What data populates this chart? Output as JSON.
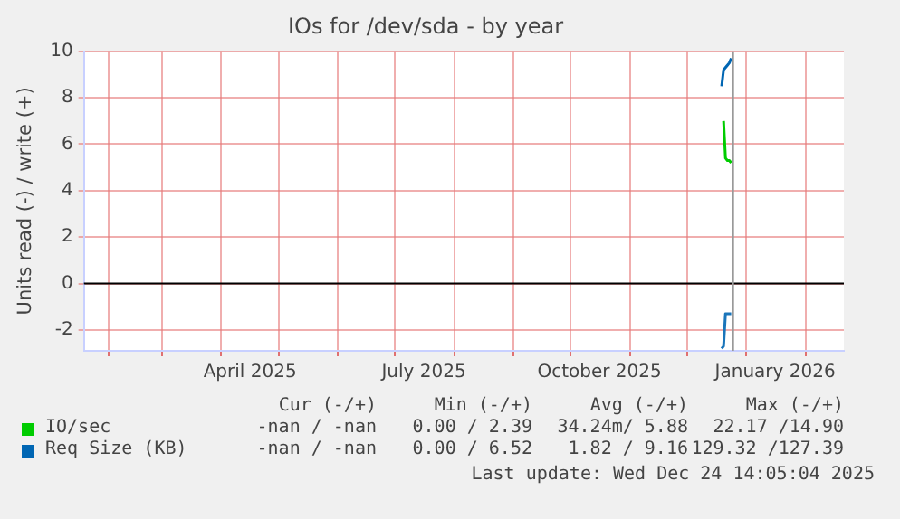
{
  "chart_data": {
    "type": "line",
    "title": "IOs for /dev/sda - by year",
    "ylabel": "Units read (-) / write (+)",
    "xlim": [
      "2025-01-19",
      "2026-02-21"
    ],
    "xticks": [
      {
        "value": "2025-02-01",
        "label": null
      },
      {
        "value": "2025-03-01",
        "label": null
      },
      {
        "value": "2025-04-01",
        "label": null
      },
      {
        "value": "2025-04-16",
        "label": "April 2025"
      },
      {
        "value": "2025-05-01",
        "label": null
      },
      {
        "value": "2025-06-01",
        "label": null
      },
      {
        "value": "2025-07-01",
        "label": null
      },
      {
        "value": "2025-07-16",
        "label": "July 2025"
      },
      {
        "value": "2025-08-01",
        "label": null
      },
      {
        "value": "2025-09-01",
        "label": null
      },
      {
        "value": "2025-10-01",
        "label": null
      },
      {
        "value": "2025-10-16",
        "label": "October 2025"
      },
      {
        "value": "2025-11-01",
        "label": null
      },
      {
        "value": "2025-12-01",
        "label": null
      },
      {
        "value": "2026-01-01",
        "label": null
      },
      {
        "value": "2026-01-16",
        "label": "January 2026"
      },
      {
        "value": "2026-02-01",
        "label": null
      }
    ],
    "ylim": [
      -2.9,
      10
    ],
    "yticks": [
      -2,
      0,
      2,
      4,
      6,
      8,
      10
    ],
    "grid": true,
    "legend": "bottom",
    "series": [
      {
        "name": "IO/sec",
        "color": "#00cc00",
        "x": [
          "2025-12-20",
          "2025-12-21",
          "2025-12-22",
          "2025-12-23",
          "2025-12-24"
        ],
        "values": [
          7.0,
          5.4,
          5.3,
          5.3,
          5.2
        ]
      },
      {
        "name": "Req Size (KB)",
        "color": "#0066b3",
        "x": [
          "2025-12-19",
          "2025-12-20",
          "2025-12-21",
          "2025-12-22",
          "2025-12-23",
          "2025-12-24"
        ],
        "values": [
          8.5,
          9.2,
          9.3,
          9.4,
          9.5,
          9.7
        ]
      },
      {
        "color": "#1a75ba",
        "x": [
          "2025-12-19",
          "2025-12-20",
          "2025-12-21",
          "2025-12-22",
          "2025-12-23",
          "2025-12-24"
        ],
        "values": [
          -2.8,
          -2.7,
          -1.3,
          -1.3,
          -1.3,
          -1.3
        ]
      }
    ],
    "ref_lines": [
      {
        "axis": "y",
        "value": 0,
        "color": "#000000"
      },
      {
        "axis": "x",
        "value": "2025-12-25",
        "color": "#999999"
      }
    ],
    "annotations": [
      "Cur (-/+)",
      "Min (-/+)",
      "Avg (-/+)",
      "Max (-/+)",
      "-nan / -nan",
      "0.00 / 2.39",
      "34.24m/ 5.88",
      "22.17 /14.90",
      "-nan / -nan",
      "0.00 / 6.52",
      "1.82 / 9.16",
      "129.32 /127.39",
      "Last update: Wed Dec 24 14:05:04 2025"
    ]
  }
}
